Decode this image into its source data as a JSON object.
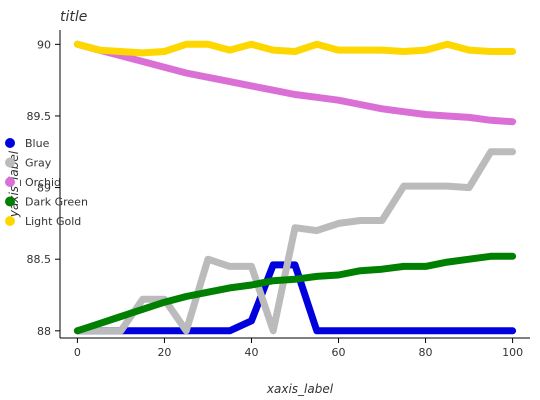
{
  "chart_data": {
    "type": "line",
    "title": "title",
    "xlabel": "xaxis_label",
    "ylabel": "yaxis_label",
    "xlim": [
      -4,
      104
    ],
    "ylim": [
      87.95,
      90.1
    ],
    "x_ticks": [
      0,
      20,
      40,
      60,
      80,
      100
    ],
    "y_ticks": [
      88,
      88.5,
      89,
      89.5,
      90
    ],
    "grid": false,
    "legend": "bottom-left",
    "x": [
      0,
      5,
      10,
      15,
      20,
      25,
      30,
      35,
      40,
      45,
      50,
      55,
      60,
      65,
      70,
      75,
      80,
      85,
      90,
      95,
      100
    ],
    "series": [
      {
        "name": "Blue",
        "color": "#0000dd",
        "values": [
          88.0,
          88.0,
          88.0,
          88.0,
          88.0,
          88.0,
          88.0,
          88.0,
          88.07,
          88.46,
          88.46,
          88.0,
          88.0,
          88.0,
          88.0,
          88.0,
          88.0,
          88.0,
          88.0,
          88.0,
          88.0
        ]
      },
      {
        "name": "Gray",
        "color": "#bbbbbb",
        "values": [
          88.0,
          88.0,
          88.0,
          88.22,
          88.22,
          88.0,
          88.5,
          88.45,
          88.45,
          88.0,
          88.72,
          88.7,
          88.75,
          88.77,
          88.77,
          89.01,
          89.01,
          89.01,
          89.0,
          89.25,
          89.25
        ]
      },
      {
        "name": "Orchid",
        "color": "#da70d6",
        "values": [
          90.0,
          89.96,
          89.92,
          89.88,
          89.84,
          89.8,
          89.77,
          89.74,
          89.71,
          89.68,
          89.65,
          89.63,
          89.61,
          89.58,
          89.55,
          89.53,
          89.51,
          89.5,
          89.49,
          89.47,
          89.46
        ]
      },
      {
        "name": "Dark Green",
        "color": "#008000",
        "values": [
          88.0,
          88.05,
          88.1,
          88.15,
          88.2,
          88.24,
          88.27,
          88.3,
          88.32,
          88.35,
          88.36,
          88.38,
          88.39,
          88.42,
          88.43,
          88.45,
          88.45,
          88.48,
          88.5,
          88.52,
          88.52
        ]
      },
      {
        "name": "Light Gold",
        "color": "#ffd700",
        "values": [
          90.0,
          89.96,
          89.95,
          89.94,
          89.95,
          90.0,
          90.0,
          89.96,
          90.0,
          89.96,
          89.95,
          90.0,
          89.96,
          89.96,
          89.96,
          89.95,
          89.96,
          90.0,
          89.96,
          89.95,
          89.95
        ]
      }
    ]
  }
}
